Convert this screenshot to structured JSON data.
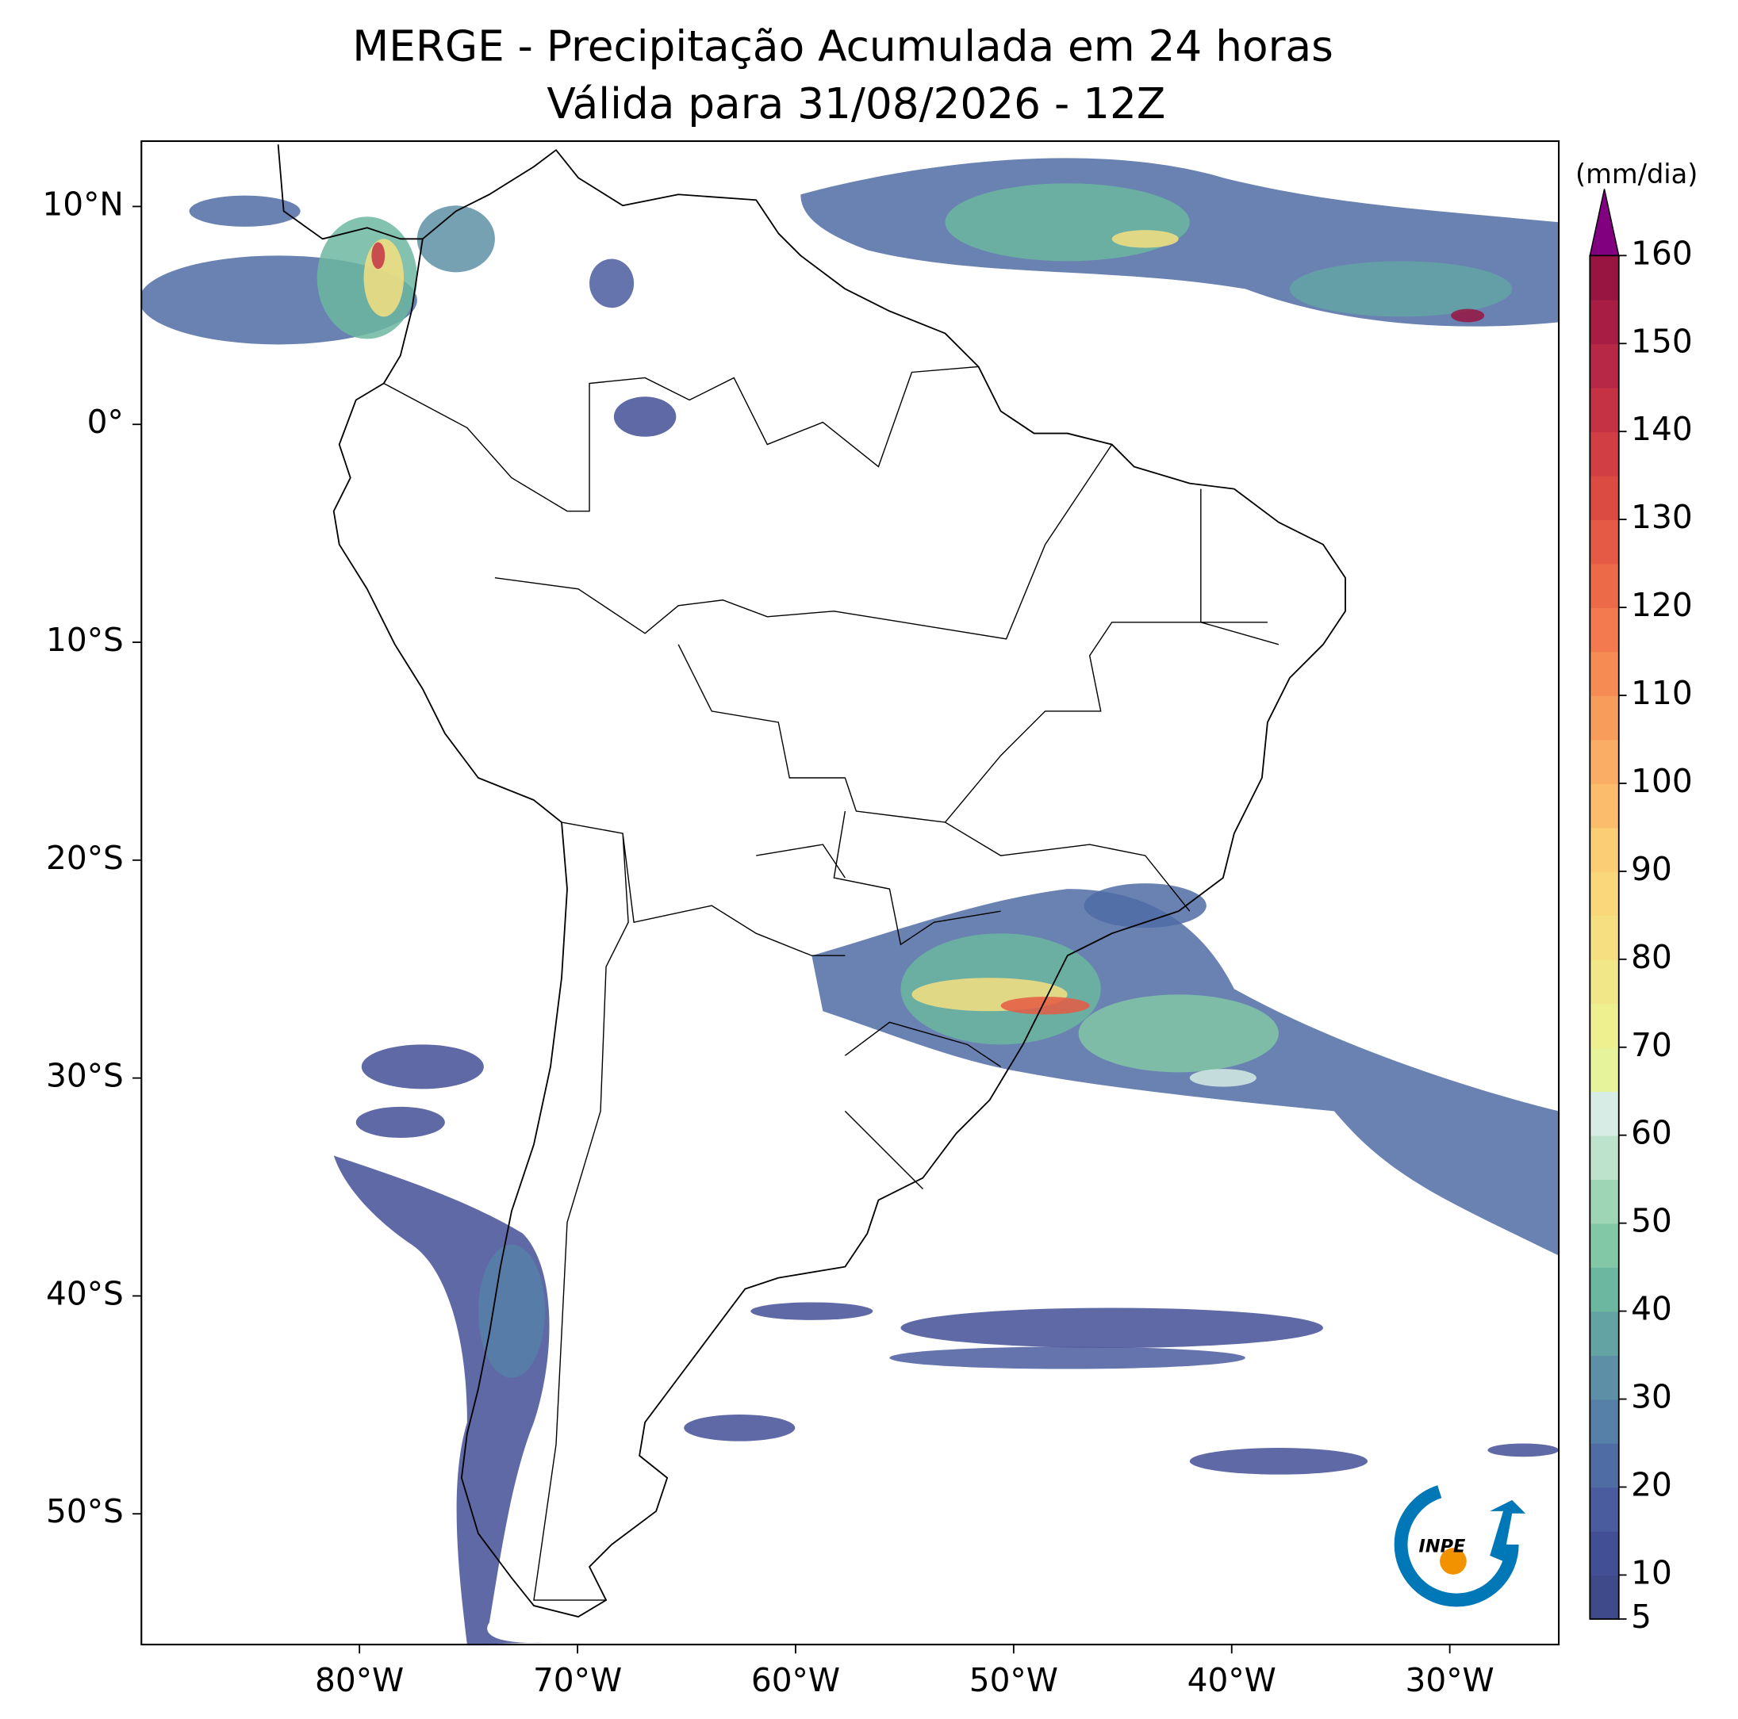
{
  "title": "MERGE - Precipitação Acumulada em 24 horas",
  "subtitle": "Válida para 31/08/2026 - 12Z",
  "map": {
    "xlim": [
      -90,
      -25
    ],
    "ylim": [
      -56,
      13
    ],
    "xticks": [
      {
        "value": -80,
        "label": "80°W"
      },
      {
        "value": -70,
        "label": "70°W"
      },
      {
        "value": -60,
        "label": "60°W"
      },
      {
        "value": -50,
        "label": "50°W"
      },
      {
        "value": -40,
        "label": "40°W"
      },
      {
        "value": -30,
        "label": "30°W"
      }
    ],
    "yticks": [
      {
        "value": 10,
        "label": "10°N"
      },
      {
        "value": 0,
        "label": "0°"
      },
      {
        "value": -10,
        "label": "10°S"
      },
      {
        "value": -20,
        "label": "20°S"
      },
      {
        "value": -30,
        "label": "30°S"
      },
      {
        "value": -40,
        "label": "40°S"
      },
      {
        "value": -50,
        "label": "50°S"
      }
    ]
  },
  "colorbar": {
    "label": "(mm/dia)",
    "clim": [
      5,
      160
    ],
    "ticks": [
      5,
      10,
      20,
      30,
      40,
      50,
      60,
      70,
      80,
      90,
      100,
      110,
      120,
      130,
      140,
      150,
      160
    ],
    "colors": [
      "#3f4a8a",
      "#434f95",
      "#4a5c9d",
      "#4f6ca4",
      "#5680a8",
      "#5d90a6",
      "#64a3a3",
      "#6cb7a0",
      "#82c7a6",
      "#9ed5b5",
      "#bde3cc",
      "#d6ece4",
      "#e6f39b",
      "#eef090",
      "#f2e788",
      "#f6df80",
      "#f9d77a",
      "#fbcd74",
      "#fbbd6c",
      "#faad64",
      "#f89c5c",
      "#f68b54",
      "#f27a4e",
      "#ec6a48",
      "#e55a44",
      "#dc4b42",
      "#d13e43",
      "#c43244",
      "#b62845",
      "#a71d44",
      "#981542"
    ],
    "extend_color": "#800080"
  },
  "logo": "INPE"
}
